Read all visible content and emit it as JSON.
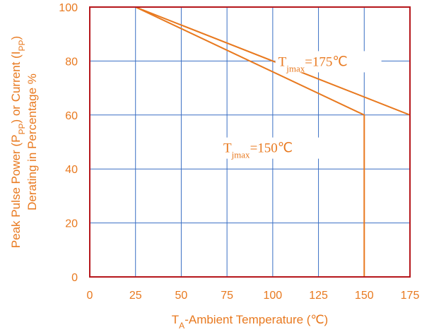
{
  "chart_data": {
    "type": "line",
    "xlabel": {
      "main": "T",
      "sub": "A",
      "rest": "-Ambient Temperature (℃)"
    },
    "ylabel_line1": {
      "a": "Peak Pulse Power (P",
      "sub1": "PP",
      "b": ") or Current (I",
      "sub2": "PP",
      "c": ")"
    },
    "ylabel_line2": "Derating in Percentage %",
    "xlim": [
      0,
      175
    ],
    "ylim": [
      0,
      100
    ],
    "xticks": [
      0,
      25,
      50,
      75,
      100,
      125,
      150,
      175
    ],
    "yticks": [
      0,
      20,
      40,
      60,
      80,
      100
    ],
    "grid": true,
    "series": [
      {
        "name": "Tjmax=175℃",
        "x": [
          0,
          25,
          175
        ],
        "y": [
          100,
          100,
          60
        ]
      },
      {
        "name": "Tjmax=150℃",
        "x": [
          0,
          25,
          150,
          150
        ],
        "y": [
          100,
          100,
          60,
          0
        ]
      }
    ],
    "annotations": [
      {
        "main": "T",
        "sub": "jmax",
        "rest": "=175℃",
        "x": 103,
        "y": 80
      },
      {
        "main": "T",
        "sub": "jmax",
        "rest": "=150℃",
        "x": 73,
        "y": 48
      }
    ],
    "colors": {
      "line": "#e8791f",
      "grid": "#3a6fc4",
      "frame": "#b5161b",
      "text": "#e8791f"
    }
  }
}
